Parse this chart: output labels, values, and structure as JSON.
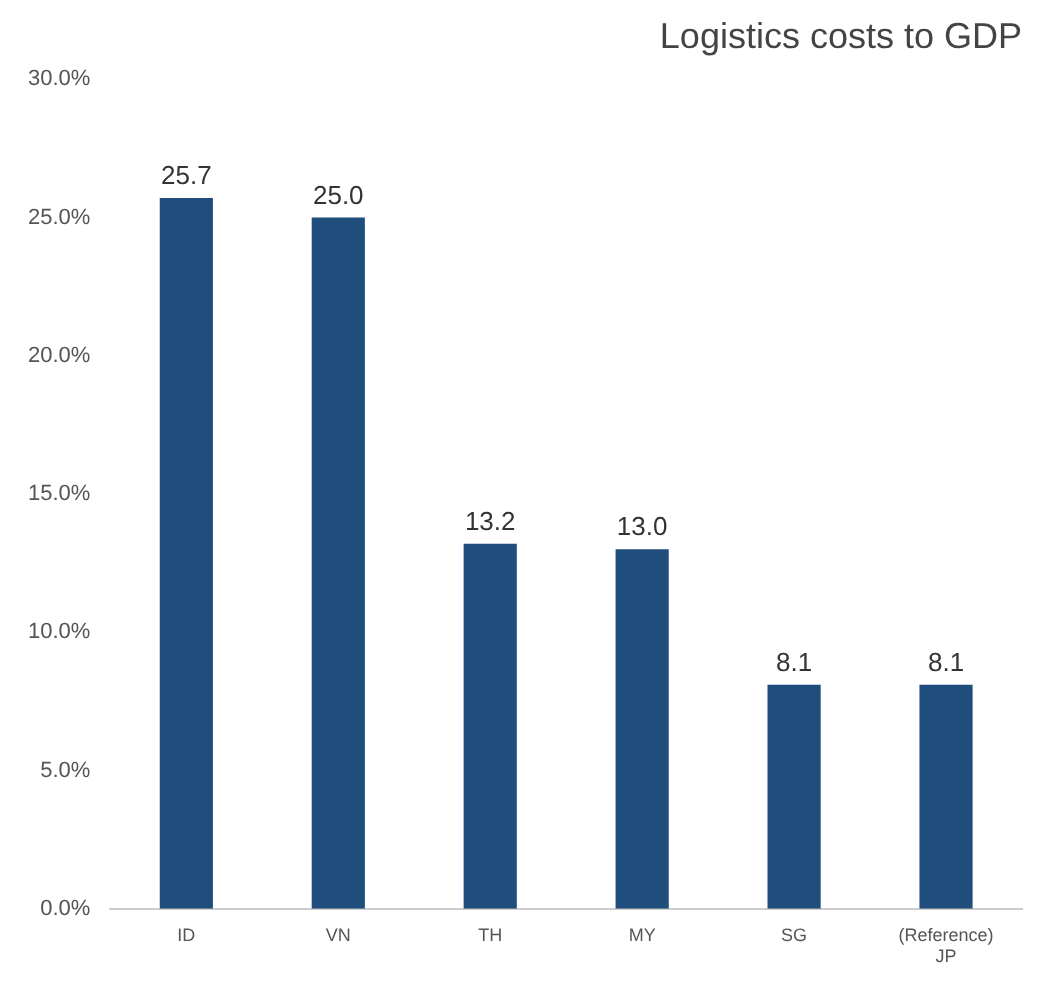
{
  "chart_data": {
    "type": "bar",
    "title": "Logistics costs to GDP",
    "categories": [
      "ID",
      "VN",
      "TH",
      "MY",
      "SG",
      "(Reference) JP"
    ],
    "values": [
      25.7,
      25.0,
      13.2,
      13.0,
      8.1,
      8.1
    ],
    "value_labels": [
      "25.7",
      "25.0",
      "13.2",
      "13.0",
      "8.1",
      "8.1"
    ],
    "color": "#1f4e7c",
    "ylim": [
      0,
      30
    ],
    "yticks": [
      {
        "value": 0,
        "label": "0.0%"
      },
      {
        "value": 5,
        "label": "5.0%"
      },
      {
        "value": 10,
        "label": "10.0%"
      },
      {
        "value": 15,
        "label": "15.0%"
      },
      {
        "value": 20,
        "label": "20.0%"
      },
      {
        "value": 25,
        "label": "25.0%"
      },
      {
        "value": 30,
        "label": "30.0%"
      }
    ],
    "grid": false,
    "legend": false
  }
}
